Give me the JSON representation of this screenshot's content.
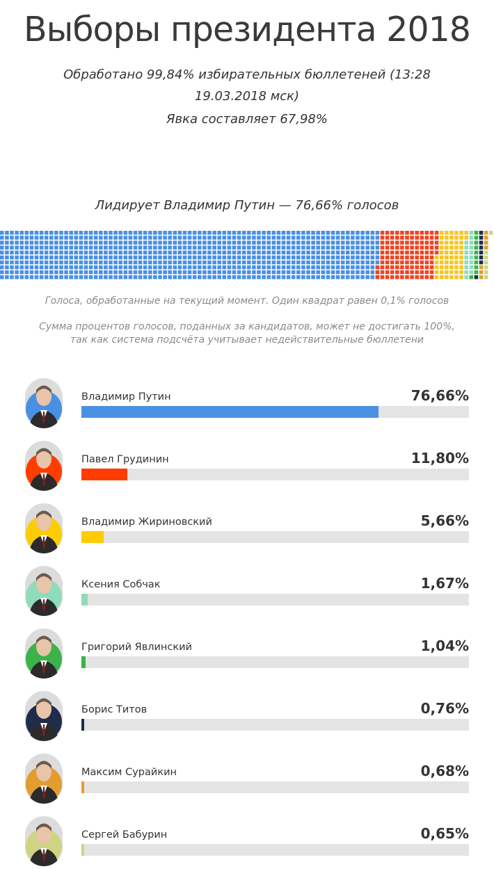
{
  "header": {
    "title": "Выборы президента 2018",
    "processed_line1": "Обработано 99,84% избирательных бюллетеней (13:28",
    "processed_line2": "19.03.2018 мск)",
    "turnout": "Явка составляет 67,98%"
  },
  "leader_text": "Лидирует Владимир Путин — 76,66% голосов",
  "notes": {
    "waffle_caption": "Голоса, обработанные на текущий момент. Один квадрат равен 0,1% голосов",
    "disclaimer_line1": "Сумма процентов голосов, поданных за кандидатов, может не достигать 100%,",
    "disclaimer_line2": "так как система подсчёта учитывает недействительные бюллетени"
  },
  "chart_data": [
    {
      "type": "waffle",
      "unit": "0,1% голосов",
      "rows": 10,
      "series": [
        {
          "name": "Владимир Путин",
          "value": 76.66,
          "color": "#4a90e2"
        },
        {
          "name": "Павел Грудинин",
          "value": 11.8,
          "color": "#ee4422"
        },
        {
          "name": "Владимир Жириновский",
          "value": 5.66,
          "color": "#f6c623"
        },
        {
          "name": "Ксения Собчак",
          "value": 1.67,
          "color": "#8fdcbc"
        },
        {
          "name": "Григорий Явлинский",
          "value": 1.04,
          "color": "#3bb24a"
        },
        {
          "name": "Борис Титов",
          "value": 0.76,
          "color": "#1f2d4a"
        },
        {
          "name": "Максим Сурайкин",
          "value": 0.68,
          "color": "#e39d2e"
        },
        {
          "name": "Сергей Бабурин",
          "value": 0.65,
          "color": "#cfd483"
        }
      ]
    },
    {
      "type": "bar",
      "orientation": "horizontal",
      "xlim": [
        0,
        100
      ],
      "categories": [
        "Владимир Путин",
        "Павел Грудинин",
        "Владимир Жириновский",
        "Ксения Собчак",
        "Григорий Явлинский",
        "Борис Титов",
        "Максим Сурайкин",
        "Сергей Бабурин"
      ],
      "values": [
        76.66,
        11.8,
        5.66,
        1.67,
        1.04,
        0.76,
        0.68,
        0.65
      ],
      "labels": [
        "76,66%",
        "11,80%",
        "5,66%",
        "1,67%",
        "1,04%",
        "0,76%",
        "0,68%",
        "0,65%"
      ],
      "colors": [
        "#4a90e2",
        "#ff3d00",
        "#ffcc00",
        "#8fdcbc",
        "#3bb24a",
        "#1f2d4a",
        "#e39d2e",
        "#cfd483"
      ]
    }
  ],
  "candidates": [
    {
      "name": "Владимир Путин",
      "percent_label": "76,66%",
      "percent": 76.66,
      "color": "#4a90e2",
      "ring_color": "#4a90e2",
      "icon": "candidate-photo"
    },
    {
      "name": "Павел Грудинин",
      "percent_label": "11,80%",
      "percent": 11.8,
      "color": "#ff3d00",
      "ring_color": "#ff3d00",
      "icon": "candidate-photo"
    },
    {
      "name": "Владимир Жириновский",
      "percent_label": "5,66%",
      "percent": 5.66,
      "color": "#ffcc00",
      "ring_color": "#ffcc00",
      "icon": "candidate-photo"
    },
    {
      "name": "Ксения Собчак",
      "percent_label": "1,67%",
      "percent": 1.67,
      "color": "#8fdcbc",
      "ring_color": "#8fdcbc",
      "icon": "candidate-photo"
    },
    {
      "name": "Григорий Явлинский",
      "percent_label": "1,04%",
      "percent": 1.04,
      "color": "#3bb24a",
      "ring_color": "#3bb24a",
      "icon": "candidate-photo"
    },
    {
      "name": "Борис Титов",
      "percent_label": "0,76%",
      "percent": 0.76,
      "color": "#1f2d4a",
      "ring_color": "#1f2d4a",
      "icon": "candidate-photo"
    },
    {
      "name": "Максим Сурайкин",
      "percent_label": "0,68%",
      "percent": 0.68,
      "color": "#e39d2e",
      "ring_color": "#e39d2e",
      "icon": "candidate-photo"
    },
    {
      "name": "Сергей Бабурин",
      "percent_label": "0,65%",
      "percent": 0.65,
      "color": "#cfd483",
      "ring_color": "#cfd483",
      "icon": "candidate-photo"
    }
  ]
}
